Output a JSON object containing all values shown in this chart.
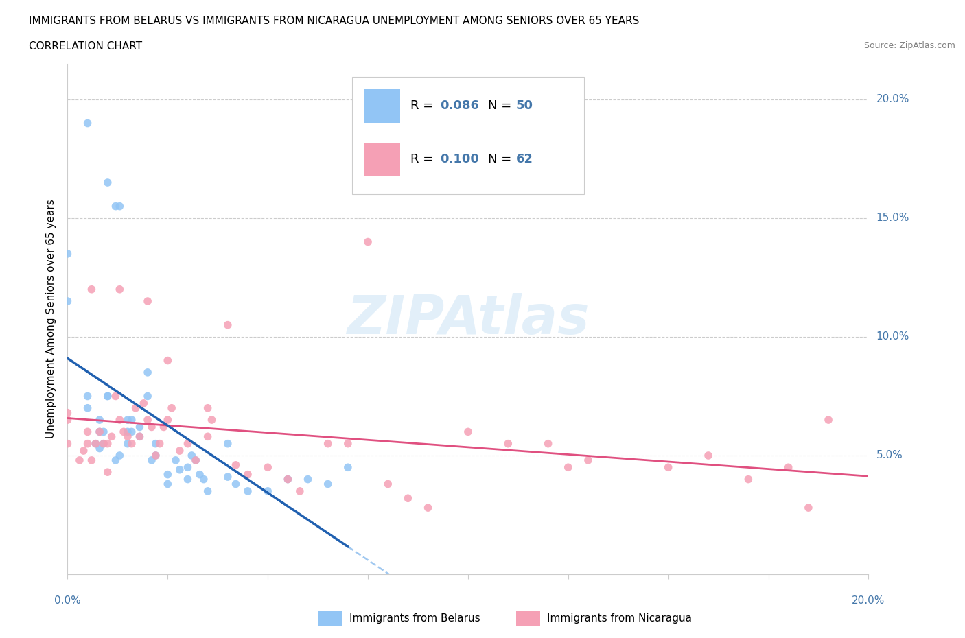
{
  "title_line1": "IMMIGRANTS FROM BELARUS VS IMMIGRANTS FROM NICARAGUA UNEMPLOYMENT AMONG SENIORS OVER 65 YEARS",
  "title_line2": "CORRELATION CHART",
  "source": "Source: ZipAtlas.com",
  "ylabel": "Unemployment Among Seniors over 65 years",
  "color_belarus": "#92c5f5",
  "color_nicaragua": "#f5a0b5",
  "trendline_belarus_color": "#2060b0",
  "trendline_nicaragua_color": "#e05080",
  "trendline_belarus_dashed_color": "#a0c8f0",
  "xlim": [
    0.0,
    0.2
  ],
  "ylim": [
    0.0,
    0.215
  ],
  "yticks": [
    0.05,
    0.1,
    0.15,
    0.2
  ],
  "belarus_x": [
    0.005,
    0.01,
    0.012,
    0.013,
    0.0,
    0.0,
    0.005,
    0.005,
    0.008,
    0.008,
    0.009,
    0.009,
    0.01,
    0.01,
    0.013,
    0.015,
    0.015,
    0.015,
    0.016,
    0.016,
    0.018,
    0.018,
    0.02,
    0.02,
    0.022,
    0.022,
    0.025,
    0.025,
    0.027,
    0.028,
    0.03,
    0.031,
    0.033,
    0.035,
    0.04,
    0.04,
    0.042,
    0.045,
    0.05,
    0.055,
    0.06,
    0.065,
    0.007,
    0.008,
    0.012,
    0.021,
    0.03,
    0.032,
    0.034,
    0.07
  ],
  "belarus_y": [
    0.19,
    0.165,
    0.155,
    0.155,
    0.135,
    0.115,
    0.075,
    0.07,
    0.065,
    0.06,
    0.06,
    0.055,
    0.075,
    0.075,
    0.05,
    0.065,
    0.06,
    0.055,
    0.065,
    0.06,
    0.062,
    0.058,
    0.085,
    0.075,
    0.055,
    0.05,
    0.042,
    0.038,
    0.048,
    0.044,
    0.045,
    0.05,
    0.042,
    0.035,
    0.055,
    0.041,
    0.038,
    0.035,
    0.035,
    0.04,
    0.04,
    0.038,
    0.055,
    0.053,
    0.048,
    0.048,
    0.04,
    0.048,
    0.04,
    0.045
  ],
  "nicaragua_x": [
    0.0,
    0.0,
    0.0,
    0.003,
    0.004,
    0.005,
    0.005,
    0.006,
    0.007,
    0.008,
    0.009,
    0.01,
    0.01,
    0.011,
    0.012,
    0.013,
    0.014,
    0.015,
    0.016,
    0.017,
    0.018,
    0.019,
    0.02,
    0.021,
    0.022,
    0.023,
    0.024,
    0.025,
    0.026,
    0.028,
    0.03,
    0.032,
    0.035,
    0.036,
    0.04,
    0.042,
    0.045,
    0.05,
    0.055,
    0.058,
    0.065,
    0.07,
    0.075,
    0.08,
    0.085,
    0.09,
    0.1,
    0.11,
    0.12,
    0.13,
    0.15,
    0.16,
    0.17,
    0.18,
    0.185,
    0.19,
    0.006,
    0.013,
    0.02,
    0.025,
    0.035,
    0.125
  ],
  "nicaragua_y": [
    0.065,
    0.068,
    0.055,
    0.048,
    0.052,
    0.055,
    0.06,
    0.048,
    0.055,
    0.06,
    0.055,
    0.043,
    0.055,
    0.058,
    0.075,
    0.065,
    0.06,
    0.058,
    0.055,
    0.07,
    0.058,
    0.072,
    0.065,
    0.062,
    0.05,
    0.055,
    0.062,
    0.065,
    0.07,
    0.052,
    0.055,
    0.048,
    0.058,
    0.065,
    0.105,
    0.046,
    0.042,
    0.045,
    0.04,
    0.035,
    0.055,
    0.055,
    0.14,
    0.038,
    0.032,
    0.028,
    0.06,
    0.055,
    0.055,
    0.048,
    0.045,
    0.05,
    0.04,
    0.045,
    0.028,
    0.065,
    0.12,
    0.12,
    0.115,
    0.09,
    0.07,
    0.045
  ]
}
